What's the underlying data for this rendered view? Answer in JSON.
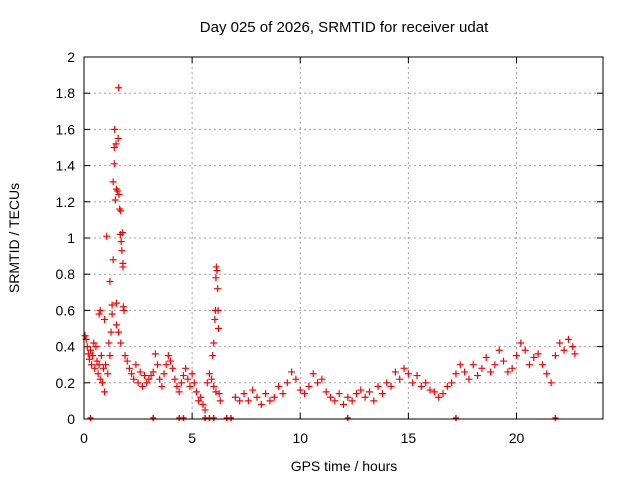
{
  "chart_data": {
    "type": "scatter",
    "title": "Day 025 of 2026, SRMTID for receiver udat",
    "xlabel": "GPS time / hours",
    "ylabel": "SRMTID / TECUs",
    "xlim": [
      0,
      24
    ],
    "ylim": [
      0,
      2
    ],
    "xticks": [
      0,
      5,
      10,
      15,
      20
    ],
    "xtick_labels": [
      "0",
      "5",
      "10",
      "15",
      "20"
    ],
    "yticks": [
      0,
      0.2,
      0.4,
      0.6,
      0.8,
      1,
      1.2,
      1.4,
      1.6,
      1.8,
      2
    ],
    "ytick_labels": [
      "0",
      "0.2",
      "0.4",
      "0.6",
      "0.8",
      "1",
      "1.2",
      "1.4",
      "1.6",
      "1.8",
      "2"
    ],
    "grid": true,
    "marker": "+",
    "series": [
      {
        "name": "SRMTID",
        "color": "#ff0000",
        "points": [
          [
            0.05,
            0.46
          ],
          [
            0.1,
            0.44
          ],
          [
            0.15,
            0.4
          ],
          [
            0.2,
            0.36
          ],
          [
            0.25,
            0.33
          ],
          [
            0.3,
            0.38
          ],
          [
            0.35,
            0.3
          ],
          [
            0.4,
            0.35
          ],
          [
            0.45,
            0.42
          ],
          [
            0.5,
            0.28
          ],
          [
            0.55,
            0.4
          ],
          [
            0.6,
            0.32
          ],
          [
            0.65,
            0.25
          ],
          [
            0.7,
            0.3
          ],
          [
            0.75,
            0.22
          ],
          [
            0.8,
            0.35
          ],
          [
            0.85,
            0.2
          ],
          [
            0.9,
            0.28
          ],
          [
            0.95,
            0.15
          ],
          [
            1.0,
            0.3
          ],
          [
            0.7,
            0.58
          ],
          [
            0.75,
            0.6
          ],
          [
            0.95,
            0.55
          ],
          [
            1.05,
            1.01
          ],
          [
            1.1,
            0.25
          ],
          [
            1.15,
            0.42
          ],
          [
            1.2,
            0.35
          ],
          [
            1.2,
            0.76
          ],
          [
            1.25,
            0.48
          ],
          [
            1.3,
            0.63
          ],
          [
            1.3,
            0.58
          ],
          [
            1.35,
            1.31
          ],
          [
            1.35,
            0.88
          ],
          [
            1.4,
            1.5
          ],
          [
            1.4,
            1.41
          ],
          [
            1.42,
            1.6
          ],
          [
            1.45,
            1.21
          ],
          [
            1.48,
            1.52
          ],
          [
            1.5,
            1.27
          ],
          [
            1.5,
            0.64
          ],
          [
            1.55,
            1.26
          ],
          [
            1.58,
            1.55
          ],
          [
            1.6,
            1.83
          ],
          [
            1.62,
            1.24
          ],
          [
            1.65,
            1.16
          ],
          [
            1.68,
            1.02
          ],
          [
            1.7,
            1.15
          ],
          [
            1.72,
            0.98
          ],
          [
            1.75,
            0.93
          ],
          [
            1.78,
            1.03
          ],
          [
            1.8,
            0.86
          ],
          [
            1.8,
            0.84
          ],
          [
            1.82,
            0.62
          ],
          [
            1.85,
            0.6
          ],
          [
            1.5,
            0.52
          ],
          [
            1.6,
            0.48
          ],
          [
            1.7,
            0.42
          ],
          [
            1.9,
            0.35
          ],
          [
            2.0,
            0.32
          ],
          [
            2.1,
            0.28
          ],
          [
            2.2,
            0.25
          ],
          [
            2.3,
            0.22
          ],
          [
            2.4,
            0.3
          ],
          [
            2.5,
            0.2
          ],
          [
            2.6,
            0.26
          ],
          [
            2.7,
            0.18
          ],
          [
            2.8,
            0.24
          ],
          [
            2.9,
            0.2
          ],
          [
            3.0,
            0.22
          ],
          [
            3.1,
            0.24
          ],
          [
            3.2,
            0.26
          ],
          [
            3.3,
            0.36
          ],
          [
            3.4,
            0.3
          ],
          [
            3.5,
            0.22
          ],
          [
            3.6,
            0.18
          ],
          [
            3.7,
            0.25
          ],
          [
            3.8,
            0.3
          ],
          [
            3.9,
            0.35
          ],
          [
            4.0,
            0.32
          ],
          [
            4.1,
            0.28
          ],
          [
            4.2,
            0.22
          ],
          [
            4.3,
            0.18
          ],
          [
            4.4,
            0.15
          ],
          [
            4.5,
            0.2
          ],
          [
            4.6,
            0.24
          ],
          [
            4.7,
            0.28
          ],
          [
            4.8,
            0.22
          ],
          [
            4.9,
            0.18
          ],
          [
            5.0,
            0.25
          ],
          [
            5.1,
            0.2
          ],
          [
            5.2,
            0.15
          ],
          [
            5.3,
            0.1
          ],
          [
            5.4,
            0.12
          ],
          [
            5.5,
            0.08
          ],
          [
            5.6,
            0.05
          ],
          [
            5.7,
            0.2
          ],
          [
            5.8,
            0.25
          ],
          [
            5.9,
            0.22
          ],
          [
            6.0,
            0.18
          ],
          [
            6.1,
            0.15
          ],
          [
            5.95,
            0.35
          ],
          [
            6.0,
            0.42
          ],
          [
            6.05,
            0.55
          ],
          [
            6.08,
            0.6
          ],
          [
            6.1,
            0.78
          ],
          [
            6.12,
            0.84
          ],
          [
            6.15,
            0.82
          ],
          [
            6.18,
            0.72
          ],
          [
            6.2,
            0.6
          ],
          [
            6.22,
            0.5
          ],
          [
            6.25,
            0.14
          ],
          [
            6.3,
            0.1
          ],
          [
            7.0,
            0.12
          ],
          [
            7.2,
            0.1
          ],
          [
            7.4,
            0.14
          ],
          [
            7.6,
            0.1
          ],
          [
            7.8,
            0.16
          ],
          [
            8.0,
            0.12
          ],
          [
            8.2,
            0.08
          ],
          [
            8.4,
            0.14
          ],
          [
            8.6,
            0.1
          ],
          [
            8.8,
            0.12
          ],
          [
            9.0,
            0.18
          ],
          [
            9.2,
            0.14
          ],
          [
            9.4,
            0.2
          ],
          [
            9.6,
            0.26
          ],
          [
            9.8,
            0.22
          ],
          [
            10.0,
            0.16
          ],
          [
            10.2,
            0.14
          ],
          [
            10.4,
            0.18
          ],
          [
            10.6,
            0.25
          ],
          [
            10.8,
            0.2
          ],
          [
            11.0,
            0.22
          ],
          [
            11.2,
            0.15
          ],
          [
            11.4,
            0.12
          ],
          [
            11.6,
            0.1
          ],
          [
            11.8,
            0.14
          ],
          [
            12.0,
            0.08
          ],
          [
            12.2,
            0.12
          ],
          [
            12.4,
            0.1
          ],
          [
            12.6,
            0.14
          ],
          [
            12.8,
            0.16
          ],
          [
            13.0,
            0.12
          ],
          [
            13.2,
            0.15
          ],
          [
            13.4,
            0.1
          ],
          [
            13.6,
            0.18
          ],
          [
            13.8,
            0.14
          ],
          [
            14.0,
            0.2
          ],
          [
            14.2,
            0.18
          ],
          [
            14.4,
            0.26
          ],
          [
            14.6,
            0.22
          ],
          [
            14.8,
            0.28
          ],
          [
            15.0,
            0.25
          ],
          [
            15.2,
            0.2
          ],
          [
            15.4,
            0.24
          ],
          [
            15.6,
            0.18
          ],
          [
            15.8,
            0.2
          ],
          [
            16.0,
            0.16
          ],
          [
            16.2,
            0.15
          ],
          [
            16.4,
            0.12
          ],
          [
            16.6,
            0.14
          ],
          [
            16.8,
            0.18
          ],
          [
            17.0,
            0.2
          ],
          [
            17.2,
            0.25
          ],
          [
            17.4,
            0.3
          ],
          [
            17.6,
            0.26
          ],
          [
            17.8,
            0.22
          ],
          [
            18.0,
            0.3
          ],
          [
            18.2,
            0.24
          ],
          [
            18.4,
            0.28
          ],
          [
            18.6,
            0.34
          ],
          [
            18.8,
            0.26
          ],
          [
            19.0,
            0.3
          ],
          [
            19.2,
            0.38
          ],
          [
            19.4,
            0.32
          ],
          [
            19.6,
            0.26
          ],
          [
            19.8,
            0.28
          ],
          [
            20.0,
            0.35
          ],
          [
            20.2,
            0.42
          ],
          [
            20.4,
            0.38
          ],
          [
            20.6,
            0.3
          ],
          [
            20.8,
            0.34
          ],
          [
            21.0,
            0.36
          ],
          [
            21.2,
            0.3
          ],
          [
            21.4,
            0.25
          ],
          [
            21.6,
            0.2
          ],
          [
            21.8,
            0.35
          ],
          [
            22.0,
            0.42
          ],
          [
            22.2,
            0.38
          ],
          [
            22.4,
            0.44
          ],
          [
            22.6,
            0.4
          ],
          [
            22.7,
            0.36
          ]
        ],
        "zero_points": [
          0.3,
          3.2,
          4.4,
          4.6,
          5.6,
          5.8,
          6.0,
          6.6,
          6.8,
          12.2,
          17.2,
          21.8
        ]
      }
    ]
  }
}
